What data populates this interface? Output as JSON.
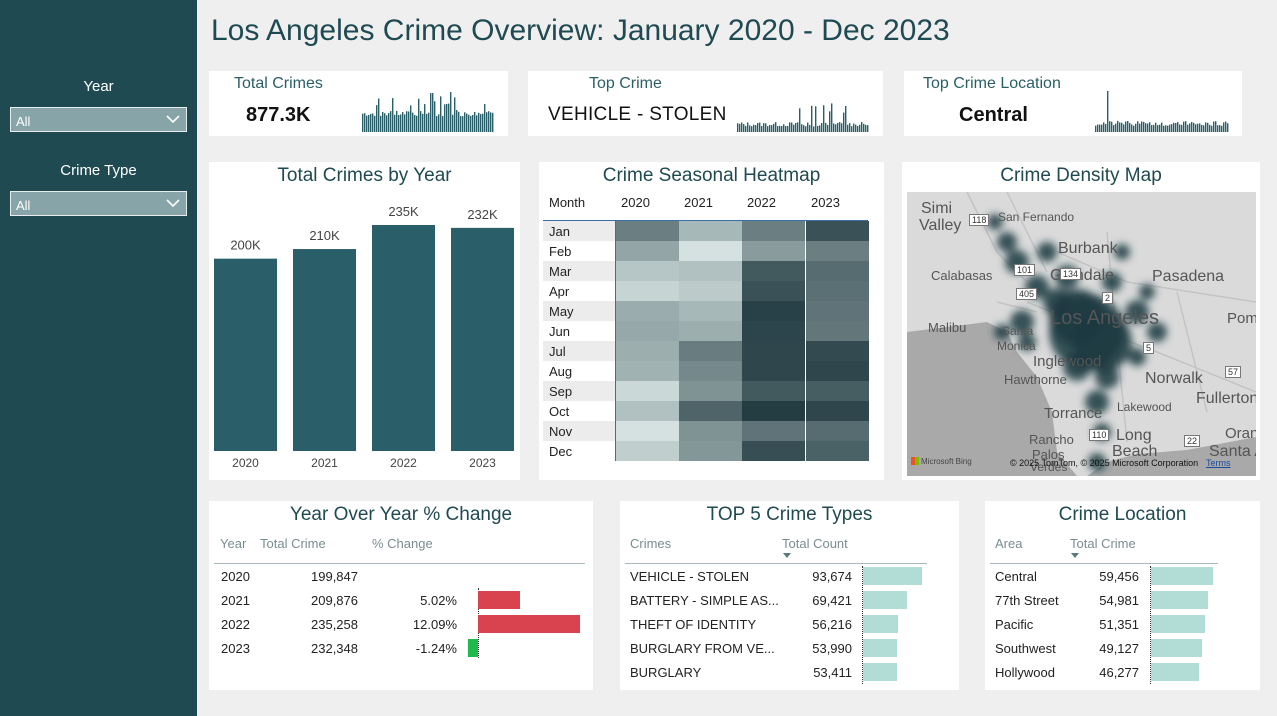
{
  "title": "Los Angeles Crime Overview: January 2020 - Dec 2023",
  "filters": {
    "year_label": "Year",
    "year_value": "All",
    "crime_type_label": "Crime Type",
    "crime_type_value": "All"
  },
  "kpis": {
    "total_crimes": {
      "title": "Total Crimes",
      "value": "877.3K"
    },
    "top_crime": {
      "title": "Top Crime",
      "value": "VEHICLE - STOLEN"
    },
    "top_location": {
      "title": "Top Crime Location",
      "value": "Central"
    }
  },
  "colors": {
    "sidebar": "#1f4a52",
    "bar": "#2a5e69",
    "negative_bar": "#d9434f",
    "positive_bar": "#1dbb4a",
    "light_bar": "#b2ddd6"
  },
  "yearly_chart": {
    "title": "Total Crimes by Year",
    "chart_data": {
      "type": "bar",
      "categories": [
        "2020",
        "2021",
        "2022",
        "2023"
      ],
      "values": [
        200,
        210,
        235,
        232
      ],
      "data_labels": [
        "200K",
        "210K",
        "235K",
        "232K"
      ],
      "ylim": [
        0,
        235
      ]
    }
  },
  "heatmap": {
    "title": "Crime Seasonal Heatmap",
    "row_header": "Month",
    "years": [
      "2020",
      "2021",
      "2022",
      "2023"
    ],
    "months": [
      "Jan",
      "Feb",
      "Mar",
      "Apr",
      "May",
      "Jun",
      "Jul",
      "Aug",
      "Sep",
      "Oct",
      "Nov",
      "Dec"
    ],
    "intensity": [
      [
        0.62,
        0.32,
        0.62,
        0.86
      ],
      [
        0.42,
        0.1,
        0.47,
        0.62
      ],
      [
        0.25,
        0.27,
        0.82,
        0.72
      ],
      [
        0.17,
        0.22,
        0.86,
        0.7
      ],
      [
        0.38,
        0.32,
        0.95,
        0.68
      ],
      [
        0.4,
        0.37,
        0.93,
        0.66
      ],
      [
        0.37,
        0.63,
        0.92,
        0.9
      ],
      [
        0.35,
        0.57,
        0.92,
        0.92
      ],
      [
        0.15,
        0.52,
        0.82,
        0.8
      ],
      [
        0.27,
        0.76,
        0.97,
        0.92
      ],
      [
        0.1,
        0.52,
        0.68,
        0.72
      ],
      [
        0.2,
        0.5,
        0.88,
        0.78
      ]
    ]
  },
  "map": {
    "title": "Crime Density Map",
    "places": [
      "Simi",
      "Valley",
      "San Fernando",
      "Burbank",
      "Calabasas",
      "Glendale",
      "Pasadena",
      "Malibu",
      "Los Angeles",
      "Pom",
      "Santa",
      "Monica",
      "Inglewood",
      "Hawthorne",
      "Norwalk",
      "Fullerton",
      "Torrance",
      "Lakewood",
      "Rancho",
      "Palos",
      "Verdes",
      "Long",
      "Beach",
      "Oran",
      "Santa A"
    ],
    "shields": [
      "118",
      "101",
      "134",
      "405",
      "2",
      "5",
      "57",
      "110",
      "22"
    ],
    "attribution": "© 2025 TomTom, © 2025 Microsoft Corporation",
    "terms": "Terms",
    "brand": "Microsoft Bing"
  },
  "yoy": {
    "title": "Year Over Year % Change",
    "headers": [
      "Year",
      "Total Crime",
      "% Change"
    ],
    "rows": [
      {
        "year": "2020",
        "total": "199,847",
        "change": "",
        "pct": 0
      },
      {
        "year": "2021",
        "total": "209,876",
        "change": "5.02%",
        "pct": 5.02
      },
      {
        "year": "2022",
        "total": "235,258",
        "change": "12.09%",
        "pct": 12.09
      },
      {
        "year": "2023",
        "total": "232,348",
        "change": "-1.24%",
        "pct": -1.24
      }
    ]
  },
  "top5": {
    "title": "TOP 5 Crime Types",
    "headers": [
      "Crimes",
      "Total Count"
    ],
    "rows": [
      {
        "name": "VEHICLE - STOLEN",
        "count": "93,674",
        "value": 93674
      },
      {
        "name": "BATTERY - SIMPLE AS...",
        "count": "69,421",
        "value": 69421
      },
      {
        "name": "THEFT OF IDENTITY",
        "count": "56,216",
        "value": 56216
      },
      {
        "name": "BURGLARY FROM VE...",
        "count": "53,990",
        "value": 53990
      },
      {
        "name": "BURGLARY",
        "count": "53,411",
        "value": 53411
      }
    ]
  },
  "locations": {
    "title": "Crime Location",
    "headers": [
      "Area",
      "Total Crime"
    ],
    "rows": [
      {
        "name": "Central",
        "count": "59,456",
        "value": 59456
      },
      {
        "name": "77th Street",
        "count": "54,981",
        "value": 54981
      },
      {
        "name": "Pacific",
        "count": "51,351",
        "value": 51351
      },
      {
        "name": "Southwest",
        "count": "49,127",
        "value": 49127
      },
      {
        "name": "Hollywood",
        "count": "46,277",
        "value": 46277
      }
    ]
  }
}
